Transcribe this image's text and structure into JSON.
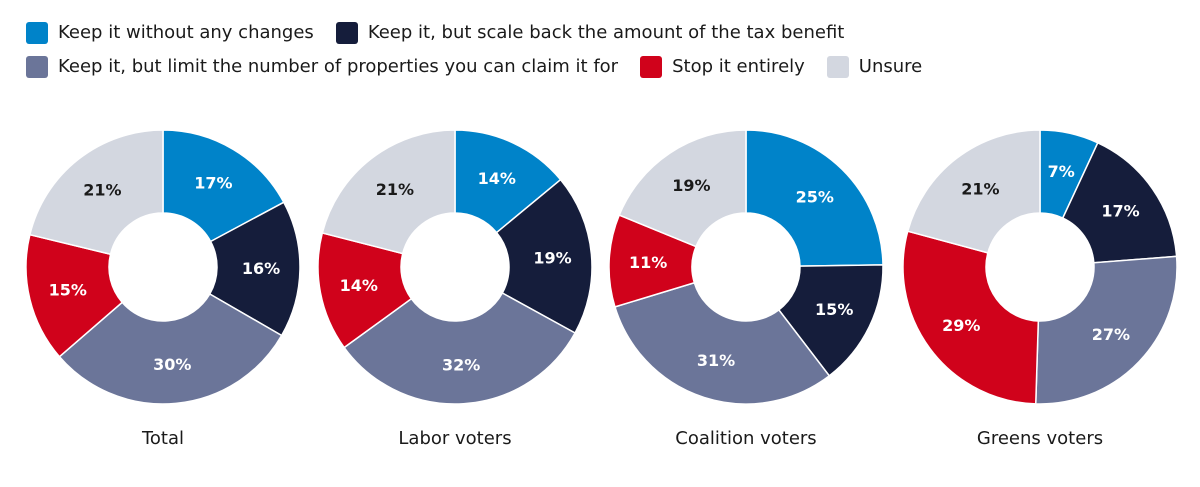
{
  "legend": {
    "row1": [
      {
        "label": "Keep it without any changes",
        "color": "#0083c9"
      },
      {
        "label": "Keep it, but scale back the amount of the tax benefit",
        "color": "#151d3b"
      }
    ],
    "row2": [
      {
        "label": "Keep it, but limit the number of properties you can claim it for",
        "color": "#6b7599"
      },
      {
        "label": "Stop it entirely",
        "color": "#d0021b"
      },
      {
        "label": "Unsure",
        "color": "#d3d7e0"
      }
    ]
  },
  "chart_data": {
    "type": "pie",
    "variant": "donut",
    "categories": [
      "Keep it without any changes",
      "Keep it, but scale back the amount of the tax benefit",
      "Keep it, but limit the number of properties you can claim it for",
      "Stop it entirely",
      "Unsure"
    ],
    "colors": [
      "#0083c9",
      "#151d3b",
      "#6b7599",
      "#d0021b",
      "#d3d7e0"
    ],
    "label_dark": [
      false,
      false,
      false,
      false,
      true
    ],
    "unit": "%",
    "charts": [
      {
        "title": "Total",
        "values": [
          17,
          16,
          30,
          15,
          21
        ]
      },
      {
        "title": "Labor voters",
        "values": [
          14,
          19,
          32,
          14,
          21
        ]
      },
      {
        "title": "Coalition voters",
        "values": [
          25,
          15,
          31,
          11,
          19
        ]
      },
      {
        "title": "Greens voters",
        "values": [
          7,
          17,
          27,
          29,
          21
        ]
      }
    ]
  }
}
